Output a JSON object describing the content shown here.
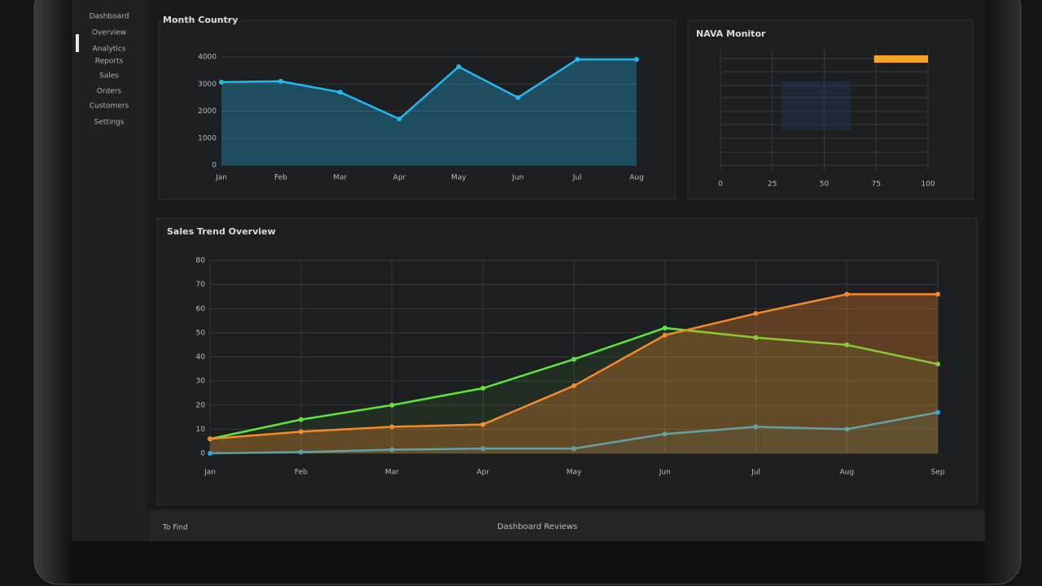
{
  "sidebar": [
    "Dashboard",
    "Overview",
    "Analytics",
    "Reports",
    "Sales",
    "Orders",
    "Customers",
    "Settings"
  ],
  "footer": {
    "left": "To Find",
    "center": "Dashboard Reviews"
  },
  "chart_data": [
    {
      "type": "line",
      "title": "Month Country",
      "color": "#22b8f0",
      "categories": [
        "Jan",
        "Feb",
        "Mar",
        "Apr",
        "May",
        "Jun",
        "Jul",
        "Aug"
      ],
      "values": [
        3070,
        3100,
        2700,
        1710,
        3640,
        2500,
        3910,
        3910
      ],
      "ylim": [
        0,
        4000
      ],
      "yticks": [
        0,
        1000,
        2000,
        3000,
        4000
      ]
    },
    {
      "type": "range",
      "title": "NAVA Monitor",
      "color": "#f5a623",
      "starts": [
        74
      ],
      "values": [
        100
      ],
      "xlim": [
        0,
        100
      ],
      "xticks": [
        0,
        25,
        50,
        75,
        100
      ]
    },
    {
      "type": "multiline",
      "title": "Sales Trend Overview",
      "categories": [
        "Jan",
        "Feb",
        "Mar",
        "Apr",
        "May",
        "Jun",
        "Jul",
        "Aug",
        "Sep"
      ],
      "series": [
        {
          "color": "#1fa8e8",
          "values": [
            0,
            0.5,
            1.5,
            2,
            2,
            8,
            11,
            10,
            17
          ]
        },
        {
          "color": "#5ee63a",
          "values": [
            6,
            14,
            20,
            27,
            39,
            52,
            48,
            45,
            37
          ]
        },
        {
          "color": "#f58a2a",
          "values": [
            6,
            9,
            11,
            12,
            28,
            49,
            58,
            66,
            66
          ],
          "area": true
        }
      ],
      "ylim": [
        0,
        80
      ],
      "yticks": [
        0,
        10,
        20,
        30,
        40,
        50,
        60,
        70,
        80
      ]
    }
  ]
}
